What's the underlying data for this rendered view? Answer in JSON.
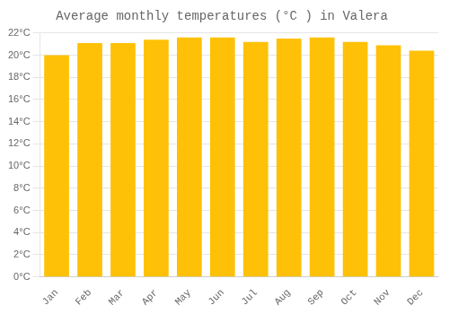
{
  "chart_data": {
    "type": "bar",
    "title": "Average monthly temperatures (°C ) in Valera",
    "categories": [
      "Jan",
      "Feb",
      "Mar",
      "Apr",
      "May",
      "Jun",
      "Jul",
      "Aug",
      "Sep",
      "Oct",
      "Nov",
      "Dec"
    ],
    "values": [
      20.0,
      21.1,
      21.1,
      21.4,
      21.6,
      21.6,
      21.2,
      21.5,
      21.6,
      21.2,
      20.9,
      20.4
    ],
    "color": "#FFC107",
    "ylim": [
      0,
      22
    ],
    "yticks": [
      {
        "value": 0,
        "label": "0°C"
      },
      {
        "value": 2,
        "label": "2°C"
      },
      {
        "value": 4,
        "label": "4°C"
      },
      {
        "value": 6,
        "label": "6°C"
      },
      {
        "value": 8,
        "label": "8°C"
      },
      {
        "value": 10,
        "label": "10°C"
      },
      {
        "value": 12,
        "label": "12°C"
      },
      {
        "value": 14,
        "label": "14°C"
      },
      {
        "value": 16,
        "label": "16°C"
      },
      {
        "value": 18,
        "label": "18°C"
      },
      {
        "value": 20,
        "label": "20°C"
      },
      {
        "value": 22,
        "label": "22°C"
      }
    ],
    "grid": true
  }
}
